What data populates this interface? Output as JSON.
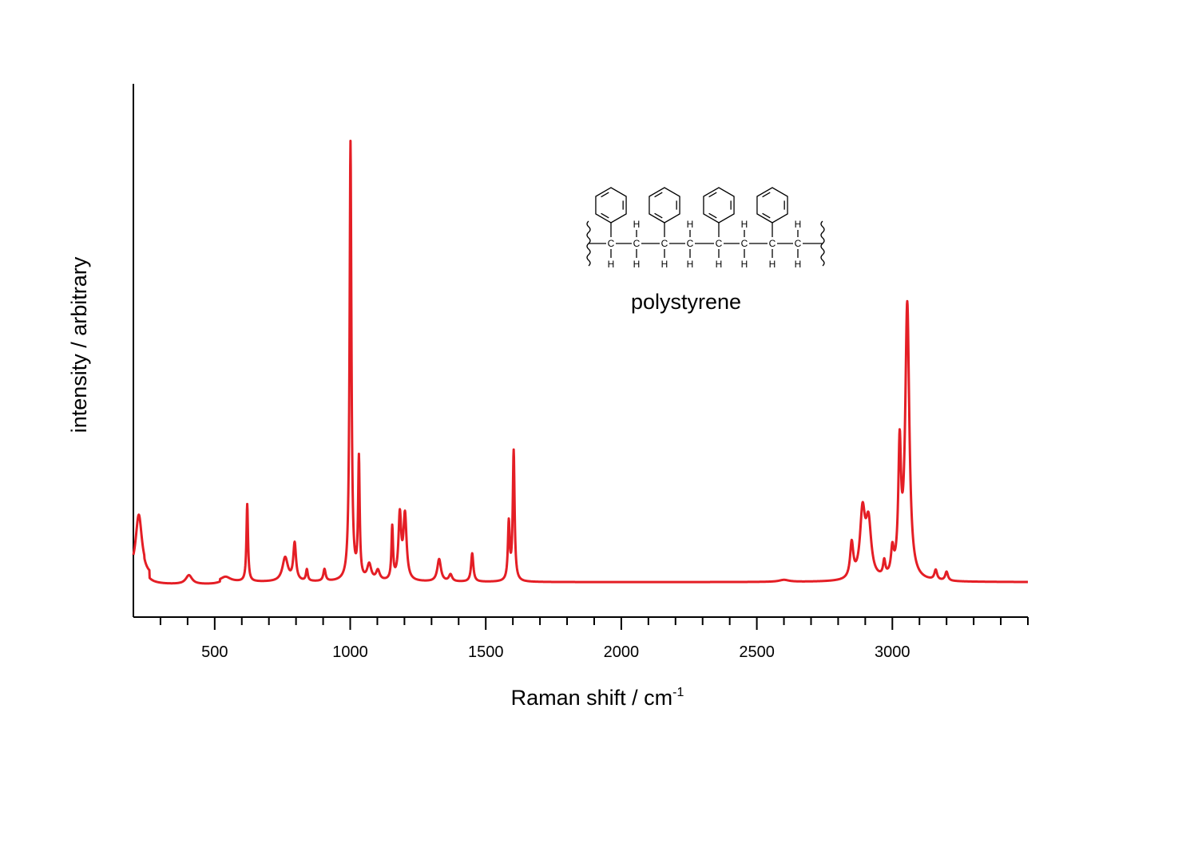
{
  "chart_data": {
    "type": "line",
    "title": "",
    "xlabel": "Raman shift / cm",
    "xlabel_superscript": "-1",
    "ylabel": "intensity / arbitrary",
    "xlim": [
      200,
      3500
    ],
    "ylim": [
      0,
      100
    ],
    "x_major_ticks": [
      500,
      1000,
      1500,
      2000,
      2500,
      3000
    ],
    "x_minor_step": 100,
    "y_ticks": [],
    "grid": false,
    "legend": "none",
    "annotation": "polystyrene",
    "line_color": "#e41e25",
    "series": [
      {
        "name": "",
        "baseline": 7.0,
        "peaks": [
          {
            "x": 220,
            "height": 12.0,
            "width": 14
          },
          {
            "x": 405,
            "height": 1.8,
            "width": 14
          },
          {
            "x": 540,
            "height": 1.0,
            "width": 22
          },
          {
            "x": 620,
            "height": 15.5,
            "width": 3.5
          },
          {
            "x": 760,
            "height": 4.8,
            "width": 12
          },
          {
            "x": 795,
            "height": 7.5,
            "width": 6
          },
          {
            "x": 840,
            "height": 2.3,
            "width": 4
          },
          {
            "x": 905,
            "height": 2.4,
            "width": 5
          },
          {
            "x": 1001,
            "height": 88.0,
            "width": 4
          },
          {
            "x": 1032,
            "height": 24.0,
            "width": 3.5
          },
          {
            "x": 1070,
            "height": 3.2,
            "width": 9
          },
          {
            "x": 1102,
            "height": 2.0,
            "width": 8
          },
          {
            "x": 1155,
            "height": 10.5,
            "width": 3.5
          },
          {
            "x": 1183,
            "height": 12.8,
            "width": 6
          },
          {
            "x": 1202,
            "height": 13.0,
            "width": 7
          },
          {
            "x": 1328,
            "height": 4.5,
            "width": 8
          },
          {
            "x": 1370,
            "height": 1.4,
            "width": 7
          },
          {
            "x": 1450,
            "height": 5.7,
            "width": 5
          },
          {
            "x": 1585,
            "height": 11.5,
            "width": 4
          },
          {
            "x": 1603,
            "height": 26.0,
            "width": 4
          },
          {
            "x": 2600,
            "height": 0.4,
            "width": 22
          },
          {
            "x": 2850,
            "height": 7.0,
            "width": 7
          },
          {
            "x": 2890,
            "height": 13.0,
            "width": 11
          },
          {
            "x": 2912,
            "height": 11.0,
            "width": 12
          },
          {
            "x": 2970,
            "height": 3.0,
            "width": 5
          },
          {
            "x": 3000,
            "height": 5.0,
            "width": 6
          },
          {
            "x": 3027,
            "height": 25.0,
            "width": 6
          },
          {
            "x": 3055,
            "height": 55.0,
            "width": 9
          },
          {
            "x": 3160,
            "height": 2.0,
            "width": 6
          },
          {
            "x": 3200,
            "height": 1.8,
            "width": 6
          }
        ]
      }
    ]
  },
  "structure": {
    "backbone_atoms": [
      "C",
      "C",
      "C",
      "C",
      "C",
      "C",
      "C",
      "C"
    ],
    "hydrogen_label": "H"
  }
}
